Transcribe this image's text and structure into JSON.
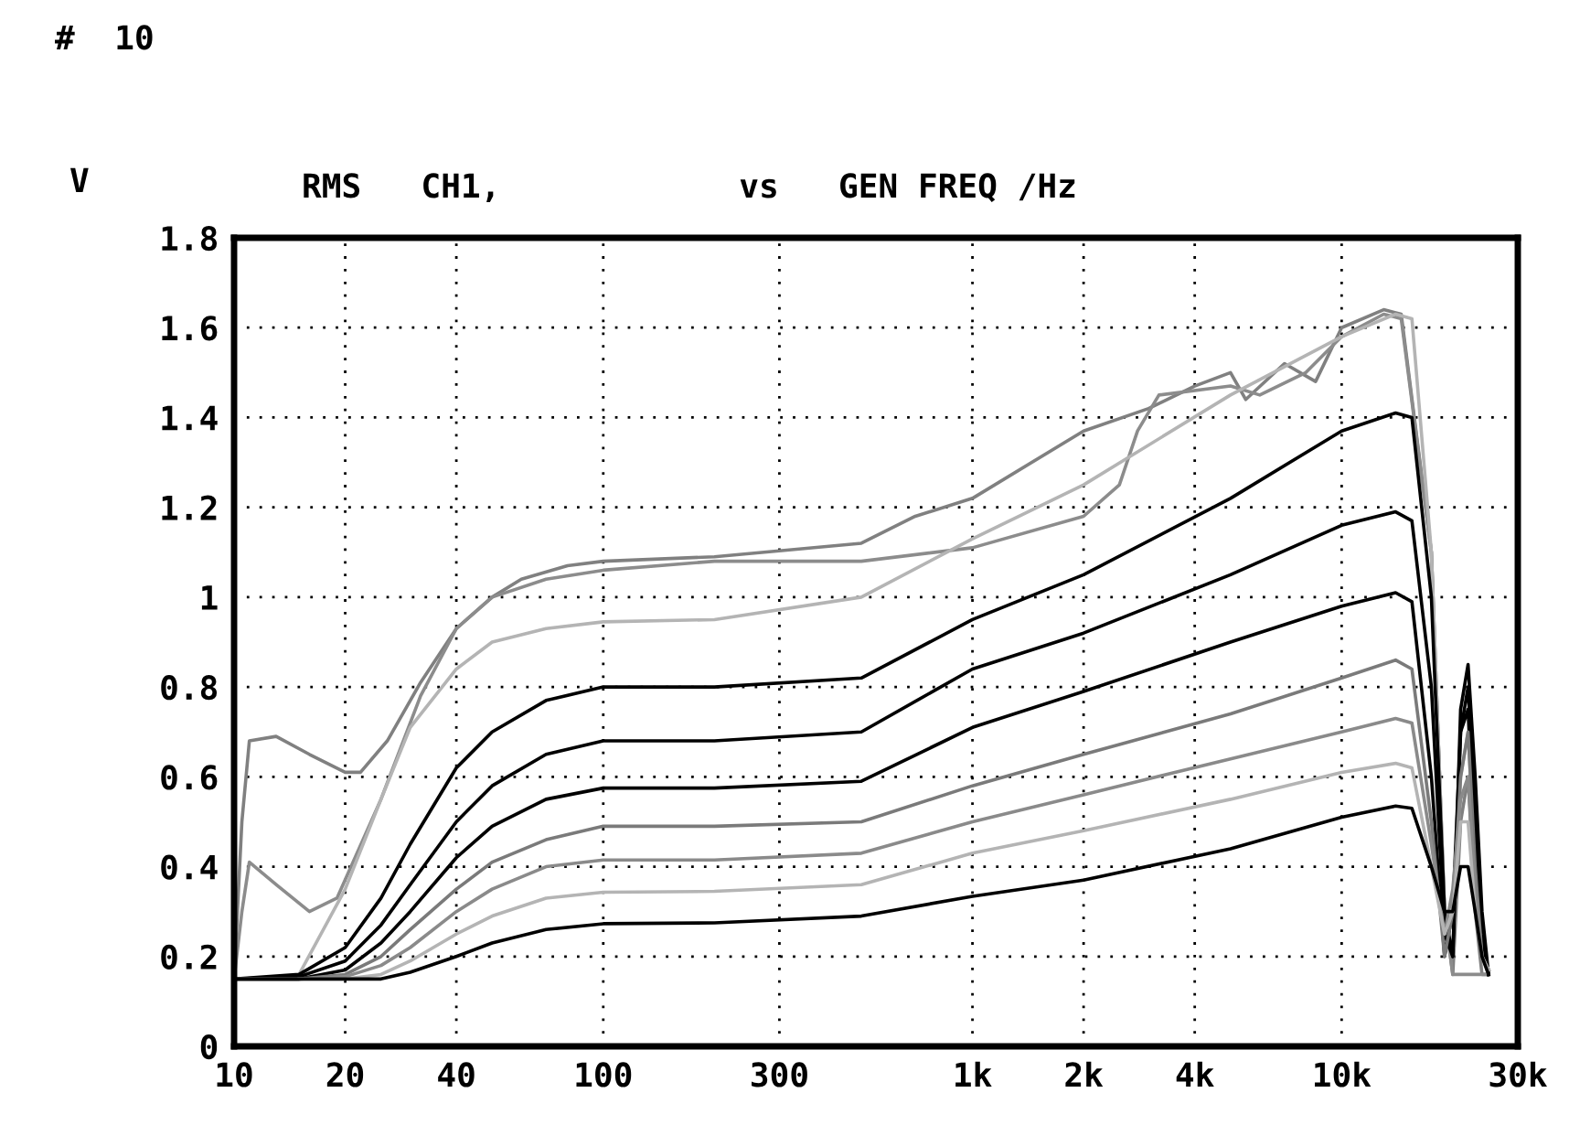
{
  "chart_data": {
    "type": "line",
    "title": "RMS   CH1,            vs   GEN FREQ /Hz",
    "ylabel": "V",
    "annotations": [
      "#  10"
    ],
    "log": "x",
    "grid": true,
    "line_style": "solid",
    "marker": "none",
    "xlim": [
      10,
      30000
    ],
    "xticks": [
      10,
      20,
      40,
      100,
      300,
      {
        "value": 1000,
        "label": "1k"
      },
      {
        "value": 2000,
        "label": "2k"
      },
      {
        "value": 4000,
        "label": "4k"
      },
      {
        "value": 10000,
        "label": "10k"
      },
      {
        "value": 30000,
        "label": "30k"
      }
    ],
    "ylim": [
      0,
      1.8
    ],
    "yticks": [
      0,
      0.2,
      0.4,
      0.6,
      0.8,
      1,
      1.2,
      1.4,
      1.6,
      1.8
    ],
    "x": [
      10,
      15,
      20,
      25,
      30,
      40,
      50,
      70,
      100,
      200,
      500,
      1000,
      2000,
      5000,
      10000,
      14000,
      15500,
      17500,
      19000,
      20000,
      21000,
      22000,
      23000,
      24000,
      25000
    ],
    "series": [
      {
        "color": "#808080",
        "x": [
          10,
          10.5,
          11,
          13,
          16,
          20,
          22,
          26,
          32,
          40,
          50,
          60,
          80,
          100,
          200,
          500,
          700,
          1000,
          2000,
          3000,
          4000,
          5000,
          5500,
          7000,
          8500,
          10000,
          13000,
          14500,
          17500,
          19000,
          20000,
          21000,
          22000,
          23000,
          24000,
          25000
        ],
        "values": [
          0.15,
          0.5,
          0.68,
          0.69,
          0.65,
          0.61,
          0.61,
          0.68,
          0.81,
          0.93,
          1.0,
          1.04,
          1.07,
          1.08,
          1.09,
          1.12,
          1.18,
          1.22,
          1.37,
          1.42,
          1.47,
          1.5,
          1.44,
          1.52,
          1.48,
          1.6,
          1.64,
          1.63,
          1.1,
          0.3,
          0.16,
          0.5,
          0.6,
          0.3,
          0.16,
          0.16
        ]
      },
      {
        "color": "#8c8c8c",
        "x": [
          10,
          10.5,
          11,
          13,
          16,
          19,
          25,
          32,
          40,
          50,
          70,
          100,
          200,
          500,
          1000,
          2000,
          2500,
          2800,
          3200,
          5000,
          6000,
          8000,
          10000,
          13000,
          14500,
          17500,
          19000,
          20000,
          21000,
          24000,
          25000
        ],
        "values": [
          0.15,
          0.3,
          0.41,
          0.36,
          0.3,
          0.33,
          0.55,
          0.78,
          0.93,
          1.0,
          1.04,
          1.06,
          1.08,
          1.08,
          1.11,
          1.18,
          1.25,
          1.37,
          1.45,
          1.47,
          1.45,
          1.5,
          1.58,
          1.63,
          1.62,
          1.1,
          0.3,
          0.16,
          0.16,
          0.16,
          0.16
        ]
      },
      {
        "color": "#b4b4b4",
        "values": [
          null,
          0.16,
          0.35,
          0.55,
          0.71,
          0.84,
          0.9,
          0.93,
          0.945,
          0.95,
          1.0,
          1.13,
          1.25,
          1.45,
          1.58,
          1.63,
          1.62,
          1.1,
          0.3,
          0.2,
          0.6,
          0.7,
          0.4,
          0.2,
          0.16
        ]
      },
      {
        "color": "#000000",
        "values": [
          0.15,
          0.16,
          0.22,
          0.33,
          0.45,
          0.62,
          0.7,
          0.77,
          0.8,
          0.8,
          0.82,
          0.95,
          1.05,
          1.22,
          1.37,
          1.41,
          1.4,
          1.0,
          0.3,
          0.2,
          0.75,
          0.85,
          0.6,
          0.3,
          0.16
        ]
      },
      {
        "color": "#000000",
        "values": [
          0.15,
          0.155,
          0.19,
          0.27,
          0.36,
          0.5,
          0.58,
          0.65,
          0.68,
          0.68,
          0.7,
          0.84,
          0.92,
          1.05,
          1.16,
          1.19,
          1.17,
          0.8,
          0.25,
          0.2,
          0.7,
          0.8,
          0.5,
          0.25,
          0.16
        ]
      },
      {
        "color": "#000000",
        "values": [
          0.15,
          0.15,
          0.17,
          0.23,
          0.3,
          0.42,
          0.49,
          0.55,
          0.575,
          0.575,
          0.59,
          0.71,
          0.79,
          0.9,
          0.98,
          1.01,
          0.99,
          0.6,
          0.2,
          0.3,
          0.7,
          0.75,
          0.4,
          0.2,
          0.17
        ]
      },
      {
        "color": "#7a7a7a",
        "values": [
          0.15,
          0.15,
          0.16,
          0.2,
          0.26,
          0.35,
          0.41,
          0.46,
          0.49,
          0.49,
          0.5,
          0.58,
          0.65,
          0.74,
          0.82,
          0.86,
          0.84,
          0.5,
          0.2,
          0.3,
          0.6,
          0.7,
          0.4,
          0.2,
          0.17
        ]
      },
      {
        "color": "#8a8a8a",
        "values": [
          0.15,
          0.15,
          0.155,
          0.18,
          0.22,
          0.3,
          0.35,
          0.4,
          0.415,
          0.415,
          0.43,
          0.5,
          0.56,
          0.64,
          0.7,
          0.73,
          0.72,
          0.45,
          0.25,
          0.35,
          0.55,
          0.6,
          0.35,
          0.2,
          0.17
        ]
      },
      {
        "color": "#b4b4b4",
        "values": [
          null,
          0.15,
          0.15,
          0.16,
          0.19,
          0.25,
          0.29,
          0.33,
          0.343,
          0.345,
          0.36,
          0.43,
          0.48,
          0.55,
          0.61,
          0.63,
          0.62,
          0.4,
          0.25,
          0.3,
          0.5,
          0.5,
          0.3,
          0.2,
          0.17
        ]
      },
      {
        "color": "#000000",
        "values": [
          0.15,
          0.15,
          0.15,
          0.15,
          0.165,
          0.2,
          0.23,
          0.26,
          0.273,
          0.275,
          0.29,
          0.334,
          0.37,
          0.44,
          0.51,
          0.535,
          0.53,
          0.4,
          0.3,
          0.3,
          0.4,
          0.4,
          0.3,
          0.2,
          0.16
        ]
      }
    ]
  }
}
